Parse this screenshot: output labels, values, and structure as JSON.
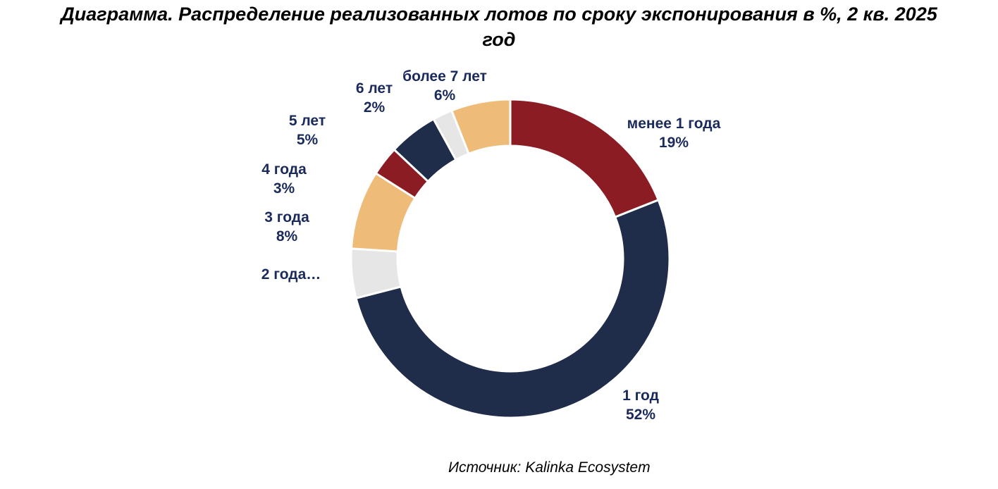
{
  "chart_data": {
    "type": "pie",
    "variant": "donut",
    "title": "Диаграмма. Распределение реализованных лотов по сроку экспонирования в %, 2 кв. 2025 год",
    "unit": "%",
    "slices": [
      {
        "label": "менее 1 года",
        "value": 19,
        "value_label": "19%",
        "color": "#8B1C24"
      },
      {
        "label": "1 год",
        "value": 52,
        "value_label": "52%",
        "color": "#1F2D4A"
      },
      {
        "label": "2 года…",
        "value": 5,
        "value_label": "",
        "color": "#E6E6E6"
      },
      {
        "label": "3 года",
        "value": 8,
        "value_label": "8%",
        "color": "#EFBB78"
      },
      {
        "label": "4 года",
        "value": 3,
        "value_label": "3%",
        "color": "#8B1C24"
      },
      {
        "label": "5 лет",
        "value": 5,
        "value_label": "5%",
        "color": "#1F2D4A"
      },
      {
        "label": "6 лет",
        "value": 2,
        "value_label": "2%",
        "color": "#E6E6E6"
      },
      {
        "label": "более 7 лет",
        "value": 6,
        "value_label": "6%",
        "color": "#EFBB78"
      }
    ],
    "label_color": "#1B2A5C",
    "legend": "none"
  },
  "source": "Источник: Kalinka Ecosystem"
}
